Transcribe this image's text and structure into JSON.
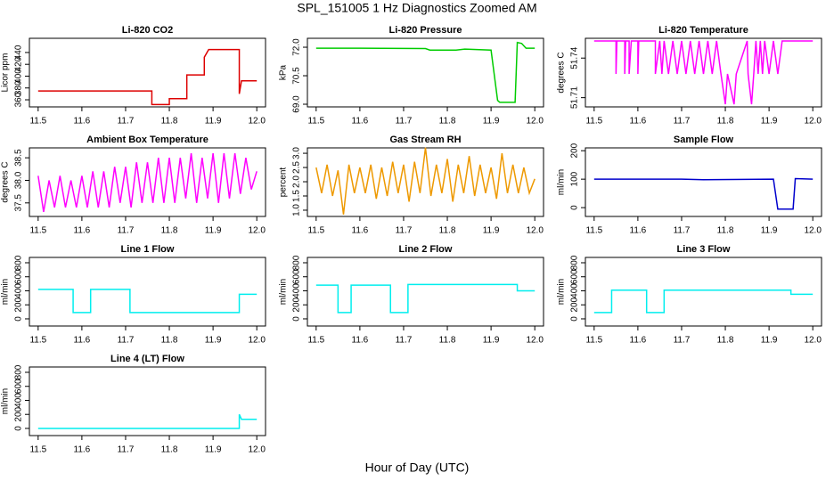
{
  "title": "SPL_151005  1 Hz Diagnostics Zoomed AM",
  "xlabel": "Hour of Day (UTC)",
  "chart_data": [
    {
      "type": "line",
      "title": "Li-820 CO2",
      "ylabel": "Licor ppm",
      "color": "#dd0000",
      "x": [
        11.5,
        11.76,
        11.76,
        11.8,
        11.8,
        11.84,
        11.84,
        11.88,
        11.88,
        11.89,
        11.96,
        11.96,
        11.965,
        12
      ],
      "values": [
        375,
        375,
        352,
        352,
        362,
        362,
        402,
        402,
        432,
        445,
        445,
        370,
        392,
        392
      ],
      "xlim": [
        11.48,
        12.02
      ],
      "ylim": [
        348,
        464
      ],
      "xticks": [
        11.5,
        11.6,
        11.7,
        11.8,
        11.9,
        {
          "value": 12,
          "label": "12.0"
        }
      ],
      "yticks": [
        360,
        380,
        400,
        420,
        440
      ]
    },
    {
      "type": "line",
      "title": "Li-820 Pressure",
      "ylabel": "kPa",
      "color": "#00cc00",
      "x": [
        11.5,
        11.6,
        11.75,
        11.76,
        11.82,
        11.84,
        11.9,
        11.915,
        11.92,
        11.955,
        11.96,
        11.97,
        11.98,
        12
      ],
      "values": [
        71.95,
        71.95,
        71.93,
        71.85,
        71.85,
        71.9,
        71.85,
        69.2,
        69.1,
        69.1,
        72.25,
        72.2,
        71.95,
        71.95
      ],
      "xlim": [
        11.48,
        12.02
      ],
      "ylim": [
        68.86,
        72.47
      ],
      "xticks": [
        11.5,
        11.6,
        11.7,
        11.8,
        11.9,
        {
          "value": 12,
          "label": "12.0"
        }
      ],
      "yticks": [
        {
          "value": 69,
          "label": "69.0"
        },
        70.5,
        {
          "value": 72,
          "label": "72.0"
        }
      ]
    },
    {
      "type": "line",
      "title": "Li-820 Temperature",
      "ylabel": "degrees C",
      "color": "#ff00ff",
      "x": [
        11.5,
        11.55,
        11.55,
        11.552,
        11.57,
        11.57,
        11.572,
        11.58,
        11.58,
        11.585,
        11.6,
        11.6,
        11.602,
        11.64,
        11.64,
        11.65,
        11.655,
        11.66,
        11.67,
        11.68,
        11.69,
        11.7,
        11.71,
        11.72,
        11.73,
        11.74,
        11.75,
        11.76,
        11.77,
        11.78,
        11.79,
        11.8,
        11.805,
        11.82,
        11.825,
        11.85,
        11.852,
        11.86,
        11.865,
        11.87,
        11.875,
        11.88,
        11.885,
        11.89,
        11.9,
        11.91,
        11.92,
        11.93,
        12
      ],
      "values": [
        51.753,
        51.753,
        51.728,
        51.753,
        51.753,
        51.728,
        51.753,
        51.753,
        51.728,
        51.753,
        51.753,
        51.728,
        51.753,
        51.753,
        51.728,
        51.753,
        51.728,
        51.753,
        51.728,
        51.753,
        51.728,
        51.753,
        51.728,
        51.753,
        51.728,
        51.753,
        51.728,
        51.753,
        51.728,
        51.753,
        51.728,
        51.705,
        51.728,
        51.705,
        51.728,
        51.753,
        51.728,
        51.705,
        51.728,
        51.753,
        51.728,
        51.753,
        51.728,
        51.753,
        51.728,
        51.753,
        51.728,
        51.753,
        51.753
      ],
      "xlim": [
        11.48,
        12.02
      ],
      "ylim": [
        51.703,
        51.755
      ],
      "xticks": [
        11.5,
        11.6,
        11.7,
        11.8,
        11.9,
        {
          "value": 12,
          "label": "12.0"
        }
      ],
      "yticks": [
        51.71,
        51.74
      ]
    },
    {
      "type": "line",
      "title": "Ambient Box Temperature",
      "ylabel": "degrees C",
      "color": "#ff00ff",
      "x": [
        11.5,
        11.5125,
        11.525,
        11.5375,
        11.55,
        11.5625,
        11.575,
        11.5875,
        11.6,
        11.6125,
        11.625,
        11.6375,
        11.65,
        11.6625,
        11.675,
        11.6875,
        11.7,
        11.7125,
        11.725,
        11.7375,
        11.75,
        11.7625,
        11.775,
        11.7875,
        11.8,
        11.8125,
        11.825,
        11.8375,
        11.85,
        11.8625,
        11.875,
        11.8875,
        11.9,
        11.9125,
        11.925,
        11.9375,
        11.95,
        11.9625,
        11.975,
        11.9875,
        12
      ],
      "values": [
        38.1,
        37.3,
        38.0,
        37.4,
        38.1,
        37.4,
        38.0,
        37.4,
        38.1,
        37.4,
        38.2,
        37.4,
        38.2,
        37.4,
        38.3,
        37.5,
        38.3,
        37.4,
        38.4,
        37.5,
        38.4,
        37.5,
        38.5,
        37.5,
        38.5,
        37.5,
        38.5,
        37.6,
        38.6,
        37.5,
        38.5,
        37.6,
        38.6,
        37.5,
        38.6,
        37.6,
        38.6,
        37.7,
        38.5,
        37.8,
        38.2
      ],
      "xlim": [
        11.48,
        12.02
      ],
      "ylim": [
        37.2,
        38.72
      ],
      "xticks": [
        11.5,
        11.6,
        11.7,
        11.8,
        11.9,
        {
          "value": 12,
          "label": "12.0"
        }
      ],
      "yticks": [
        37.5,
        {
          "value": 38,
          "label": "38.0"
        },
        38.5
      ]
    },
    {
      "type": "line",
      "title": "Gas Stream RH",
      "ylabel": "percent",
      "color": "#ee9900",
      "x": [
        11.5,
        11.5125,
        11.525,
        11.5375,
        11.55,
        11.5625,
        11.575,
        11.5875,
        11.6,
        11.6125,
        11.625,
        11.6375,
        11.65,
        11.6625,
        11.675,
        11.6875,
        11.7,
        11.7125,
        11.725,
        11.7375,
        11.75,
        11.7625,
        11.775,
        11.7875,
        11.8,
        11.8125,
        11.825,
        11.8375,
        11.85,
        11.8625,
        11.875,
        11.8875,
        11.9,
        11.9125,
        11.925,
        11.9375,
        11.95,
        11.9625,
        11.975,
        11.9875,
        12
      ],
      "values": [
        2.5,
        1.6,
        2.6,
        1.5,
        2.4,
        0.85,
        2.6,
        1.6,
        2.5,
        1.6,
        2.6,
        1.4,
        2.5,
        1.5,
        2.7,
        1.6,
        2.6,
        1.3,
        2.7,
        1.6,
        3.2,
        1.5,
        2.6,
        1.6,
        2.8,
        1.3,
        2.6,
        1.6,
        2.9,
        1.5,
        2.6,
        1.6,
        2.5,
        1.4,
        3.0,
        1.6,
        2.6,
        1.6,
        2.5,
        1.6,
        2.1
      ],
      "xlim": [
        11.48,
        12.02
      ],
      "ylim": [
        0.78,
        3.19
      ],
      "xticks": [
        11.5,
        11.6,
        11.7,
        11.8,
        11.9,
        {
          "value": 12,
          "label": "12.0"
        }
      ],
      "yticks": [
        {
          "value": 1,
          "label": "1.0"
        },
        1.5,
        {
          "value": 2,
          "label": "2.0"
        },
        2.5,
        {
          "value": 3,
          "label": "3.0"
        }
      ]
    },
    {
      "type": "line",
      "title": "Sample Flow",
      "ylabel": "ml/min",
      "color": "#0000cc",
      "x": [
        11.5,
        11.7,
        11.75,
        11.91,
        11.92,
        11.955,
        11.96,
        12
      ],
      "values": [
        100,
        100,
        98,
        100,
        -5,
        -5,
        102,
        100
      ],
      "xlim": [
        11.48,
        12.02
      ],
      "ylim": [
        -31,
        210
      ],
      "xticks": [
        11.5,
        11.6,
        11.7,
        11.8,
        11.9,
        {
          "value": 12,
          "label": "12.0"
        }
      ],
      "yticks": [
        0,
        100,
        200
      ]
    },
    {
      "type": "line",
      "title": "Line 1 Flow",
      "ylabel": "ml/min",
      "color": "#00eeee",
      "x": [
        11.5,
        11.58,
        11.58,
        11.62,
        11.62,
        11.71,
        11.71,
        11.96,
        11.96,
        12
      ],
      "values": [
        420,
        420,
        90,
        90,
        420,
        420,
        90,
        90,
        350,
        350
      ],
      "xlim": [
        11.48,
        12.02
      ],
      "ylim": [
        -102,
        876
      ],
      "xticks": [
        11.5,
        11.6,
        11.7,
        11.8,
        11.9,
        {
          "value": 12,
          "label": "12.0"
        }
      ],
      "yticks": [
        0,
        200,
        400,
        600,
        800
      ]
    },
    {
      "type": "line",
      "title": "Line 2 Flow",
      "ylabel": "ml/min",
      "color": "#00eeee",
      "x": [
        11.5,
        11.55,
        11.55,
        11.58,
        11.58,
        11.67,
        11.67,
        11.71,
        11.71,
        11.96,
        11.96,
        12
      ],
      "values": [
        480,
        480,
        90,
        90,
        480,
        480,
        90,
        90,
        490,
        490,
        400,
        400
      ],
      "xlim": [
        11.48,
        12.02
      ],
      "ylim": [
        -102,
        876
      ],
      "xticks": [
        11.5,
        11.6,
        11.7,
        11.8,
        11.9,
        {
          "value": 12,
          "label": "12.0"
        }
      ],
      "yticks": [
        0,
        200,
        400,
        600,
        800
      ]
    },
    {
      "type": "line",
      "title": "Line 3 Flow",
      "ylabel": "ml/min",
      "color": "#00eeee",
      "x": [
        11.5,
        11.54,
        11.54,
        11.62,
        11.62,
        11.66,
        11.66,
        11.67,
        11.95,
        11.95,
        12
      ],
      "values": [
        90,
        90,
        410,
        410,
        90,
        90,
        410,
        410,
        410,
        350,
        350
      ],
      "xlim": [
        11.48,
        12.02
      ],
      "ylim": [
        -102,
        876
      ],
      "xticks": [
        11.5,
        11.6,
        11.7,
        11.8,
        11.9,
        {
          "value": 12,
          "label": "12.0"
        }
      ],
      "yticks": [
        0,
        200,
        400,
        600,
        800
      ]
    },
    {
      "type": "line",
      "title": "Line 4 (LT) Flow",
      "ylabel": "ml/min",
      "color": "#00eeee",
      "x": [
        11.5,
        11.96,
        11.96,
        11.965,
        12
      ],
      "values": [
        0,
        0,
        200,
        130,
        130
      ],
      "xlim": [
        11.48,
        12.02
      ],
      "ylim": [
        -102,
        876
      ],
      "xticks": [
        11.5,
        11.6,
        11.7,
        11.8,
        11.9,
        {
          "value": 12,
          "label": "12.0"
        }
      ],
      "yticks": [
        0,
        200,
        400,
        600,
        800
      ]
    }
  ]
}
